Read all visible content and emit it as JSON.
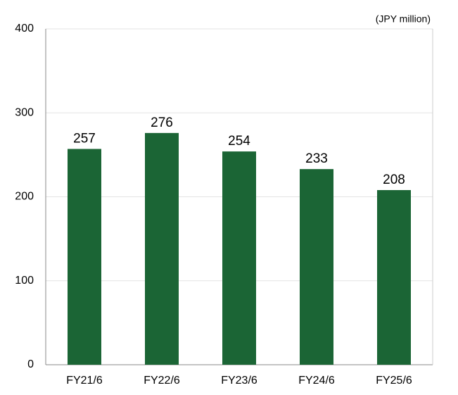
{
  "chart_data": {
    "type": "bar",
    "unit_label": "(JPY million)",
    "categories": [
      "FY21/6",
      "FY22/6",
      "FY23/6",
      "FY24/6",
      "FY25/6"
    ],
    "values": [
      257,
      276,
      254,
      233,
      208
    ],
    "color": "#1b6535",
    "ylim": [
      0,
      400
    ],
    "yticks": [
      0,
      100,
      200,
      300,
      400
    ],
    "grid": true
  }
}
